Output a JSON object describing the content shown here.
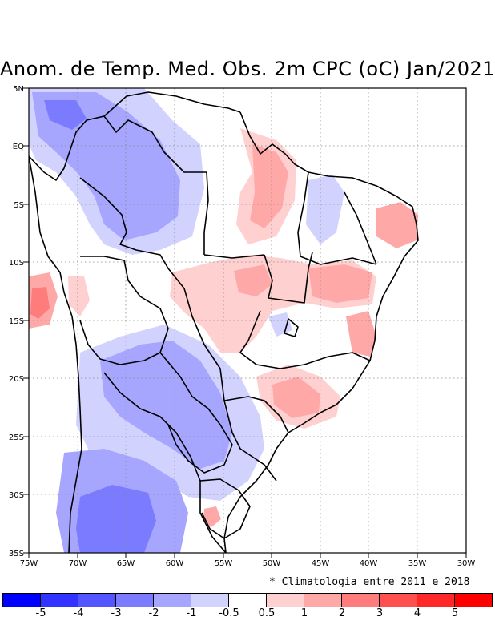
{
  "title": "Anom. de Temp. Med. Obs. 2m CPC (oC) Jan/2021",
  "footnote": "* Climatologia entre 2011 e 2018",
  "map": {
    "lon_range": [
      -75,
      -30
    ],
    "lat_range": [
      -35,
      5
    ],
    "lon_ticks": [
      "75W",
      "70W",
      "65W",
      "60W",
      "55W",
      "50W",
      "45W",
      "40W",
      "35W",
      "30W"
    ],
    "lat_ticks": [
      "5N",
      "EQ",
      "5S",
      "10S",
      "15S",
      "20S",
      "25S",
      "30S",
      "35S"
    ]
  },
  "colorbar": {
    "colors": [
      "#0000ff",
      "#3333ff",
      "#5555ff",
      "#7b7bff",
      "#a6a6ff",
      "#d2d2ff",
      "#ffffff",
      "#ffd0d0",
      "#ffa8a8",
      "#ff7c7c",
      "#ff5050",
      "#ff2828",
      "#ff0000"
    ],
    "labels": [
      "-5",
      "-4",
      "-3",
      "-2",
      "-1",
      "-0.5",
      "0.5",
      "1",
      "2",
      "3",
      "4",
      "5"
    ]
  },
  "colors": {
    "cool_light": "#d2d2ff",
    "cool_mid": "#a6a6ff",
    "cool_strong": "#7b7bff",
    "warm_light": "#ffd0d0",
    "warm_mid": "#ffa8a8",
    "warm_strong": "#ff7c7c"
  }
}
